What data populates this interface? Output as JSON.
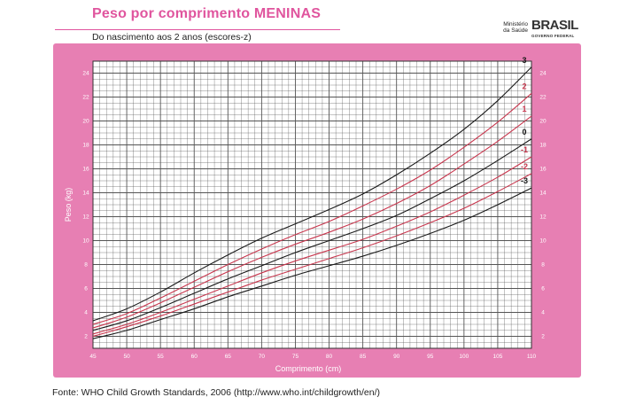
{
  "header": {
    "title": "Peso por comprimento MENINAS",
    "subtitle": "Do nascimento aos 2 anos (escores-z)",
    "ministry_line1": "Ministério",
    "ministry_line2": "da Saúde",
    "logo_word": "BRASIL",
    "logo_sub": "GOVERNO FEDERAL"
  },
  "footer": {
    "source": "Fonte: WHO Child Growth Standards, 2006 (http://www.who.int/childgrowth/en/)"
  },
  "colors": {
    "frame": "#e77fb3",
    "title": "#e0559e",
    "grid": "#555555",
    "curve_black": "#1a1a1a",
    "curve_red": "#c8374e",
    "tick_label": "#ffffff"
  },
  "chart_data": {
    "type": "line",
    "xlabel": "Comprimento (cm)",
    "ylabel": "Peso (kg)",
    "xlim": [
      45,
      110
    ],
    "ylim": [
      1,
      25
    ],
    "x_ticks": [
      45,
      50,
      55,
      60,
      65,
      70,
      75,
      80,
      85,
      90,
      95,
      100,
      105,
      110
    ],
    "y_ticks": [
      2,
      4,
      6,
      8,
      10,
      12,
      14,
      16,
      18,
      20,
      22,
      24
    ],
    "grid": true,
    "x": [
      45,
      50,
      55,
      60,
      65,
      70,
      75,
      80,
      85,
      90,
      95,
      100,
      105,
      110
    ],
    "series": [
      {
        "name": "3",
        "color": "black",
        "values": [
          3.3,
          4.3,
          5.7,
          7.3,
          8.8,
          10.2,
          11.4,
          12.6,
          13.9,
          15.5,
          17.3,
          19.3,
          21.7,
          24.5
        ]
      },
      {
        "name": "2",
        "color": "red",
        "values": [
          3.0,
          3.9,
          5.2,
          6.6,
          8.0,
          9.3,
          10.5,
          11.6,
          12.9,
          14.3,
          15.9,
          17.8,
          19.9,
          22.3
        ]
      },
      {
        "name": "1",
        "color": "red",
        "values": [
          2.7,
          3.6,
          4.8,
          6.1,
          7.4,
          8.6,
          9.7,
          10.7,
          11.8,
          13.1,
          14.6,
          16.4,
          18.3,
          20.4
        ]
      },
      {
        "name": "0",
        "color": "black",
        "values": [
          2.5,
          3.3,
          4.4,
          5.6,
          6.8,
          7.9,
          9.0,
          10.0,
          11.0,
          12.1,
          13.5,
          15.0,
          16.7,
          18.5
        ]
      },
      {
        "name": "-1",
        "color": "red",
        "values": [
          2.2,
          3.0,
          4.0,
          5.1,
          6.2,
          7.3,
          8.3,
          9.2,
          10.1,
          11.2,
          12.4,
          13.8,
          15.3,
          17.0
        ]
      },
      {
        "name": "-2",
        "color": "red",
        "values": [
          2.0,
          2.8,
          3.7,
          4.7,
          5.7,
          6.7,
          7.6,
          8.5,
          9.4,
          10.4,
          11.5,
          12.7,
          14.1,
          15.6
        ]
      },
      {
        "name": "-3",
        "color": "black",
        "values": [
          1.8,
          2.5,
          3.4,
          4.3,
          5.3,
          6.2,
          7.1,
          7.9,
          8.7,
          9.6,
          10.6,
          11.7,
          13.0,
          14.4
        ]
      }
    ]
  }
}
